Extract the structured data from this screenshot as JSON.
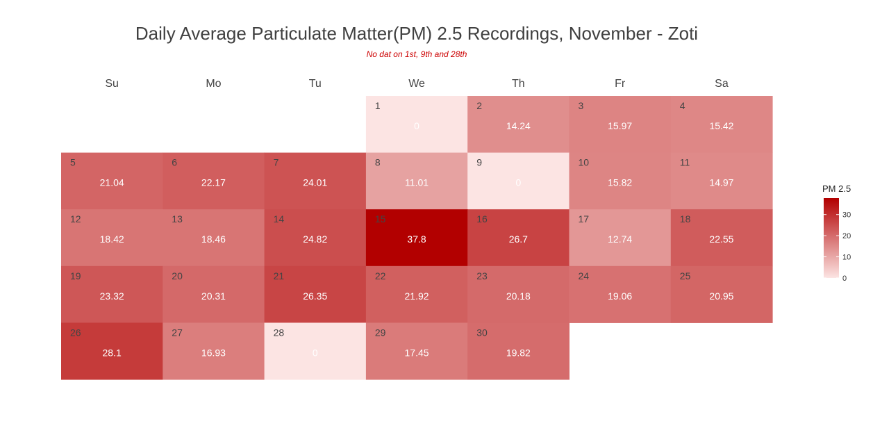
{
  "chart_data": {
    "type": "heatmap",
    "title": "Daily Average Particulate Matter(PM) 2.5 Recordings, November - Zoti",
    "subtitle": "No dat on 1st, 9th and 28th",
    "weekdays": [
      "Su",
      "Mo",
      "Tu",
      "We",
      "Th",
      "Fr",
      "Sa"
    ],
    "first_weekday_index": 3,
    "days": [
      1,
      2,
      3,
      4,
      5,
      6,
      7,
      8,
      9,
      10,
      11,
      12,
      13,
      14,
      15,
      16,
      17,
      18,
      19,
      20,
      21,
      22,
      23,
      24,
      25,
      26,
      27,
      28,
      29,
      30
    ],
    "values": [
      0,
      14.24,
      15.97,
      15.42,
      21.04,
      22.17,
      24.01,
      11.01,
      0,
      15.82,
      14.97,
      18.42,
      18.46,
      24.82,
      37.8,
      26.7,
      12.74,
      22.55,
      23.32,
      20.31,
      26.35,
      21.92,
      20.18,
      19.06,
      20.95,
      28.1,
      16.93,
      0,
      17.45,
      19.82
    ],
    "value_labels": [
      "0",
      "14.24",
      "15.97",
      "15.42",
      "21.04",
      "22.17",
      "24.01",
      "11.01",
      "0",
      "15.82",
      "14.97",
      "18.42",
      "18.46",
      "24.82",
      "37.8",
      "26.7",
      "12.74",
      "22.55",
      "23.32",
      "20.31",
      "26.35",
      "21.92",
      "20.18",
      "19.06",
      "20.95",
      "28.1",
      "16.93",
      "0",
      "17.45",
      "19.82"
    ],
    "legend": {
      "title": "PM 2.5",
      "ticks": [
        "0",
        "10",
        "20",
        "30"
      ],
      "tick_values": [
        0,
        10,
        20,
        30
      ],
      "range": [
        0,
        37.8
      ],
      "placement": "right"
    },
    "color_low": "#fce4e3",
    "color_high": "#b20000",
    "subtitle_color": "#cc0000"
  }
}
